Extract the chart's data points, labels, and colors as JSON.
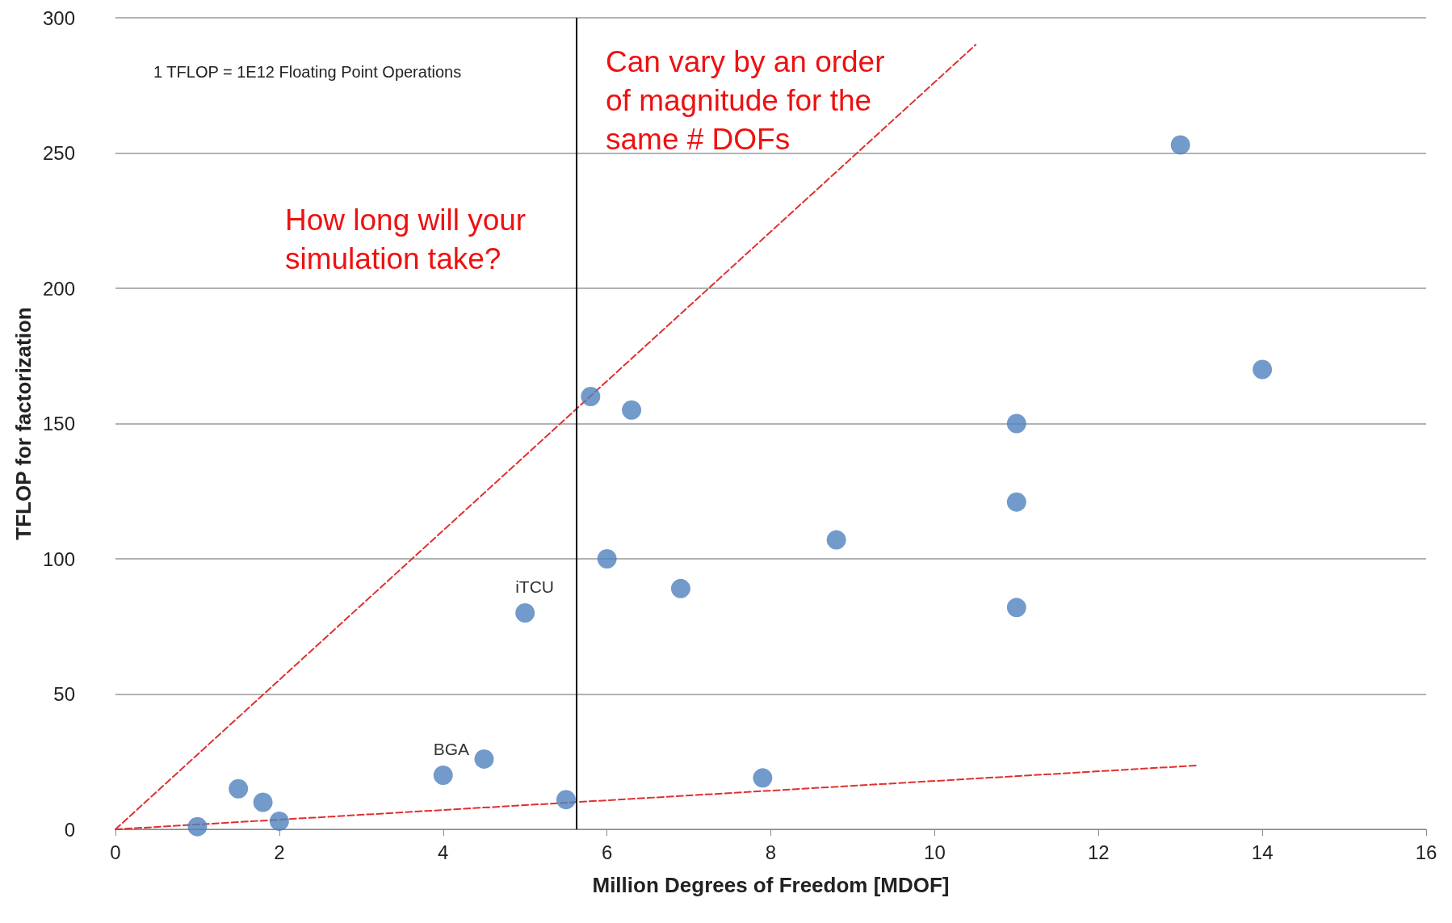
{
  "chart_data": {
    "type": "scatter",
    "xlabel": "Million Degrees of Freedom [MDOF]",
    "ylabel": "TFLOP for factorization",
    "series": [
      {
        "type": "scatter",
        "color": "#4f81bd",
        "x": [
          1.0,
          1.5,
          1.8,
          2.0,
          4.0,
          4.5,
          5.0,
          5.5,
          5.8,
          6.3,
          6.0,
          6.9,
          7.9,
          8.8,
          11,
          11,
          11,
          13,
          14
        ],
        "values": [
          1,
          15,
          10,
          3,
          20,
          26,
          80,
          11,
          160,
          155,
          100,
          89,
          19,
          107,
          150,
          121,
          82,
          253,
          170
        ]
      },
      {
        "type": "line",
        "color": "#e03030",
        "line_style": "dashed",
        "marker": "none",
        "x": [
          0,
          10.5
        ],
        "values": [
          0,
          290
        ]
      },
      {
        "type": "line",
        "color": "#e03030",
        "line_style": "dashed",
        "marker": "none",
        "x": [
          0,
          13.2
        ],
        "values": [
          0,
          23.6
        ]
      }
    ],
    "marker": "circle",
    "xlim": [
      0,
      16
    ],
    "xticks": [
      0,
      2,
      4,
      6,
      8,
      10,
      12,
      14,
      16
    ],
    "ylim": [
      0,
      300
    ],
    "yticks": [
      0,
      50,
      100,
      150,
      200,
      250,
      300
    ],
    "grid": "y",
    "ref_lines": [
      {
        "axis": "x",
        "value": 5.63,
        "color": "#000000",
        "line_style": "solid"
      }
    ],
    "annotations": [
      "1 TFLOP = 1E12 Floating Point Operations",
      "Can vary by an order of magnitude for the same # DOFs",
      "How long will your simulation take?",
      {
        "text": "BGA",
        "x": 4.0,
        "y": 20
      },
      {
        "text": "iTCU",
        "x": 5.0,
        "y": 80
      }
    ]
  }
}
